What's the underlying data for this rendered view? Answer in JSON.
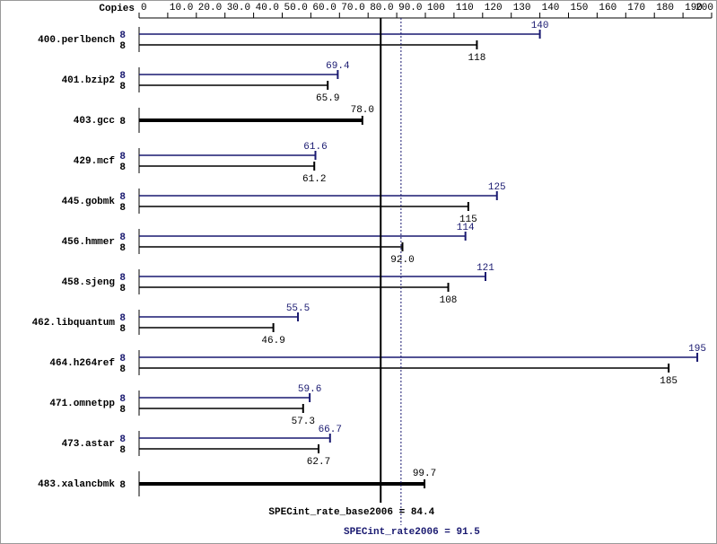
{
  "chart_data": {
    "type": "bar",
    "axis_label": "Copies",
    "categories": [
      "400.perlbench",
      "401.bzip2",
      "403.gcc",
      "429.mcf",
      "445.gobmk",
      "456.hmmer",
      "458.sjeng",
      "462.libquantum",
      "464.h264ref",
      "471.omnetpp",
      "473.astar",
      "483.xalancbmk"
    ],
    "series": [
      {
        "color": "#191970",
        "values": [
          140,
          69.4,
          null,
          61.6,
          125,
          114,
          121,
          55.5,
          195,
          59.6,
          66.7,
          null
        ],
        "value_labels": [
          "140",
          "69.4",
          null,
          "61.6",
          "125",
          "114",
          "121",
          "55.5",
          "195",
          "59.6",
          "66.7",
          null
        ],
        "copies": [
          8,
          8,
          null,
          8,
          8,
          8,
          8,
          8,
          8,
          8,
          8,
          null
        ]
      },
      {
        "color": "#000000",
        "values": [
          118,
          65.9,
          78,
          61.2,
          115,
          92,
          108,
          46.9,
          185,
          57.3,
          62.7,
          99.7
        ],
        "value_labels": [
          "118",
          "65.9",
          "78.0",
          "61.2",
          "115",
          "92.0",
          "108",
          "46.9",
          "185",
          "57.3",
          "62.7",
          "99.7"
        ],
        "copies": [
          8,
          8,
          8,
          8,
          8,
          8,
          8,
          8,
          8,
          8,
          8,
          8
        ]
      }
    ],
    "xlim": [
      0,
      200
    ],
    "xticks": [
      0,
      {
        "value": 10,
        "label": "10.0"
      },
      {
        "value": 20,
        "label": "20.0"
      },
      {
        "value": 30,
        "label": "30.0"
      },
      {
        "value": 40,
        "label": "40.0"
      },
      {
        "value": 50,
        "label": "50.0"
      },
      {
        "value": 60,
        "label": "60.0"
      },
      {
        "value": 70,
        "label": "70.0"
      },
      {
        "value": 80,
        "label": "80.0"
      },
      {
        "value": 90,
        "label": "90.0"
      },
      100,
      110,
      120,
      130,
      140,
      150,
      160,
      170,
      180,
      190,
      200
    ],
    "reference_lines": [
      {
        "label": "SPECint_rate_base2006 = 84.4",
        "value": 84.4,
        "color": "#000000",
        "style": "solid"
      },
      {
        "label": "SPECint_rate2006 = 91.5",
        "value": 91.5,
        "color": "#191970",
        "style": "dotted"
      }
    ]
  }
}
